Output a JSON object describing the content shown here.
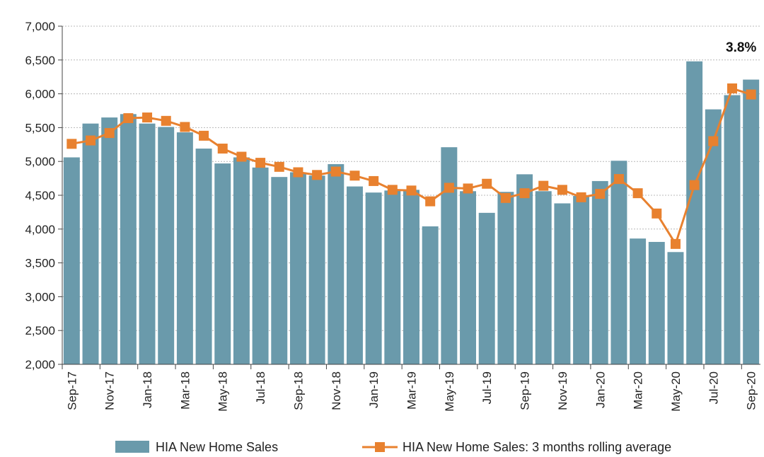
{
  "chart_data": {
    "type": "bar",
    "categories": [
      "Sep-17",
      "Oct-17",
      "Nov-17",
      "Dec-17",
      "Jan-18",
      "Feb-18",
      "Mar-18",
      "Apr-18",
      "May-18",
      "Jun-18",
      "Jul-18",
      "Aug-18",
      "Sep-18",
      "Oct-18",
      "Nov-18",
      "Dec-18",
      "Jan-19",
      "Feb-19",
      "Mar-19",
      "Apr-19",
      "May-19",
      "Jun-19",
      "Jul-19",
      "Aug-19",
      "Sep-19",
      "Oct-19",
      "Nov-19",
      "Dec-19",
      "Jan-20",
      "Feb-20",
      "Mar-20",
      "Apr-20",
      "May-20",
      "Jun-20",
      "Jul-20",
      "Aug-20",
      "Sep-20"
    ],
    "x_tick_labels": [
      "Sep-17",
      "Nov-17",
      "Jan-18",
      "Mar-18",
      "May-18",
      "Jul-18",
      "Sep-18",
      "Nov-18",
      "Jan-19",
      "Mar-19",
      "May-19",
      "Jul-19",
      "Sep-19",
      "Nov-19",
      "Jan-20",
      "Mar-20",
      "May-20",
      "Jul-20",
      "Sep-20"
    ],
    "series": [
      {
        "name": "HIA New Home Sales",
        "type": "bar",
        "color": "#6a9aab",
        "values": [
          5060,
          5560,
          5650,
          5700,
          5560,
          5510,
          5430,
          5190,
          4970,
          5060,
          4910,
          4770,
          4840,
          4790,
          4960,
          4630,
          4540,
          4570,
          4580,
          4040,
          5210,
          4560,
          4240,
          4550,
          4810,
          4560,
          4380,
          4490,
          4710,
          5010,
          3860,
          3810,
          3660,
          6480,
          5770,
          5980,
          6210
        ]
      },
      {
        "name": "HIA New Home Sales: 3 months rolling average",
        "type": "line",
        "color": "#e8812f",
        "values": [
          5260,
          5310,
          5420,
          5640,
          5650,
          5600,
          5510,
          5380,
          5190,
          5070,
          4980,
          4920,
          4840,
          4800,
          4850,
          4790,
          4710,
          4580,
          4570,
          4410,
          4610,
          4600,
          4670,
          4460,
          4530,
          4640,
          4580,
          4470,
          4520,
          4740,
          4530,
          4230,
          3780,
          4650,
          5300,
          6080,
          5990
        ]
      }
    ],
    "ylim": [
      2000,
      7000
    ],
    "yticks": [
      "2,000",
      "2,500",
      "3,000",
      "3,500",
      "4,000",
      "4,500",
      "5,000",
      "5,500",
      "6,000",
      "6,500",
      "7,000"
    ],
    "grid": true,
    "legend_placement": "bottom",
    "annotation": "3.8%"
  }
}
